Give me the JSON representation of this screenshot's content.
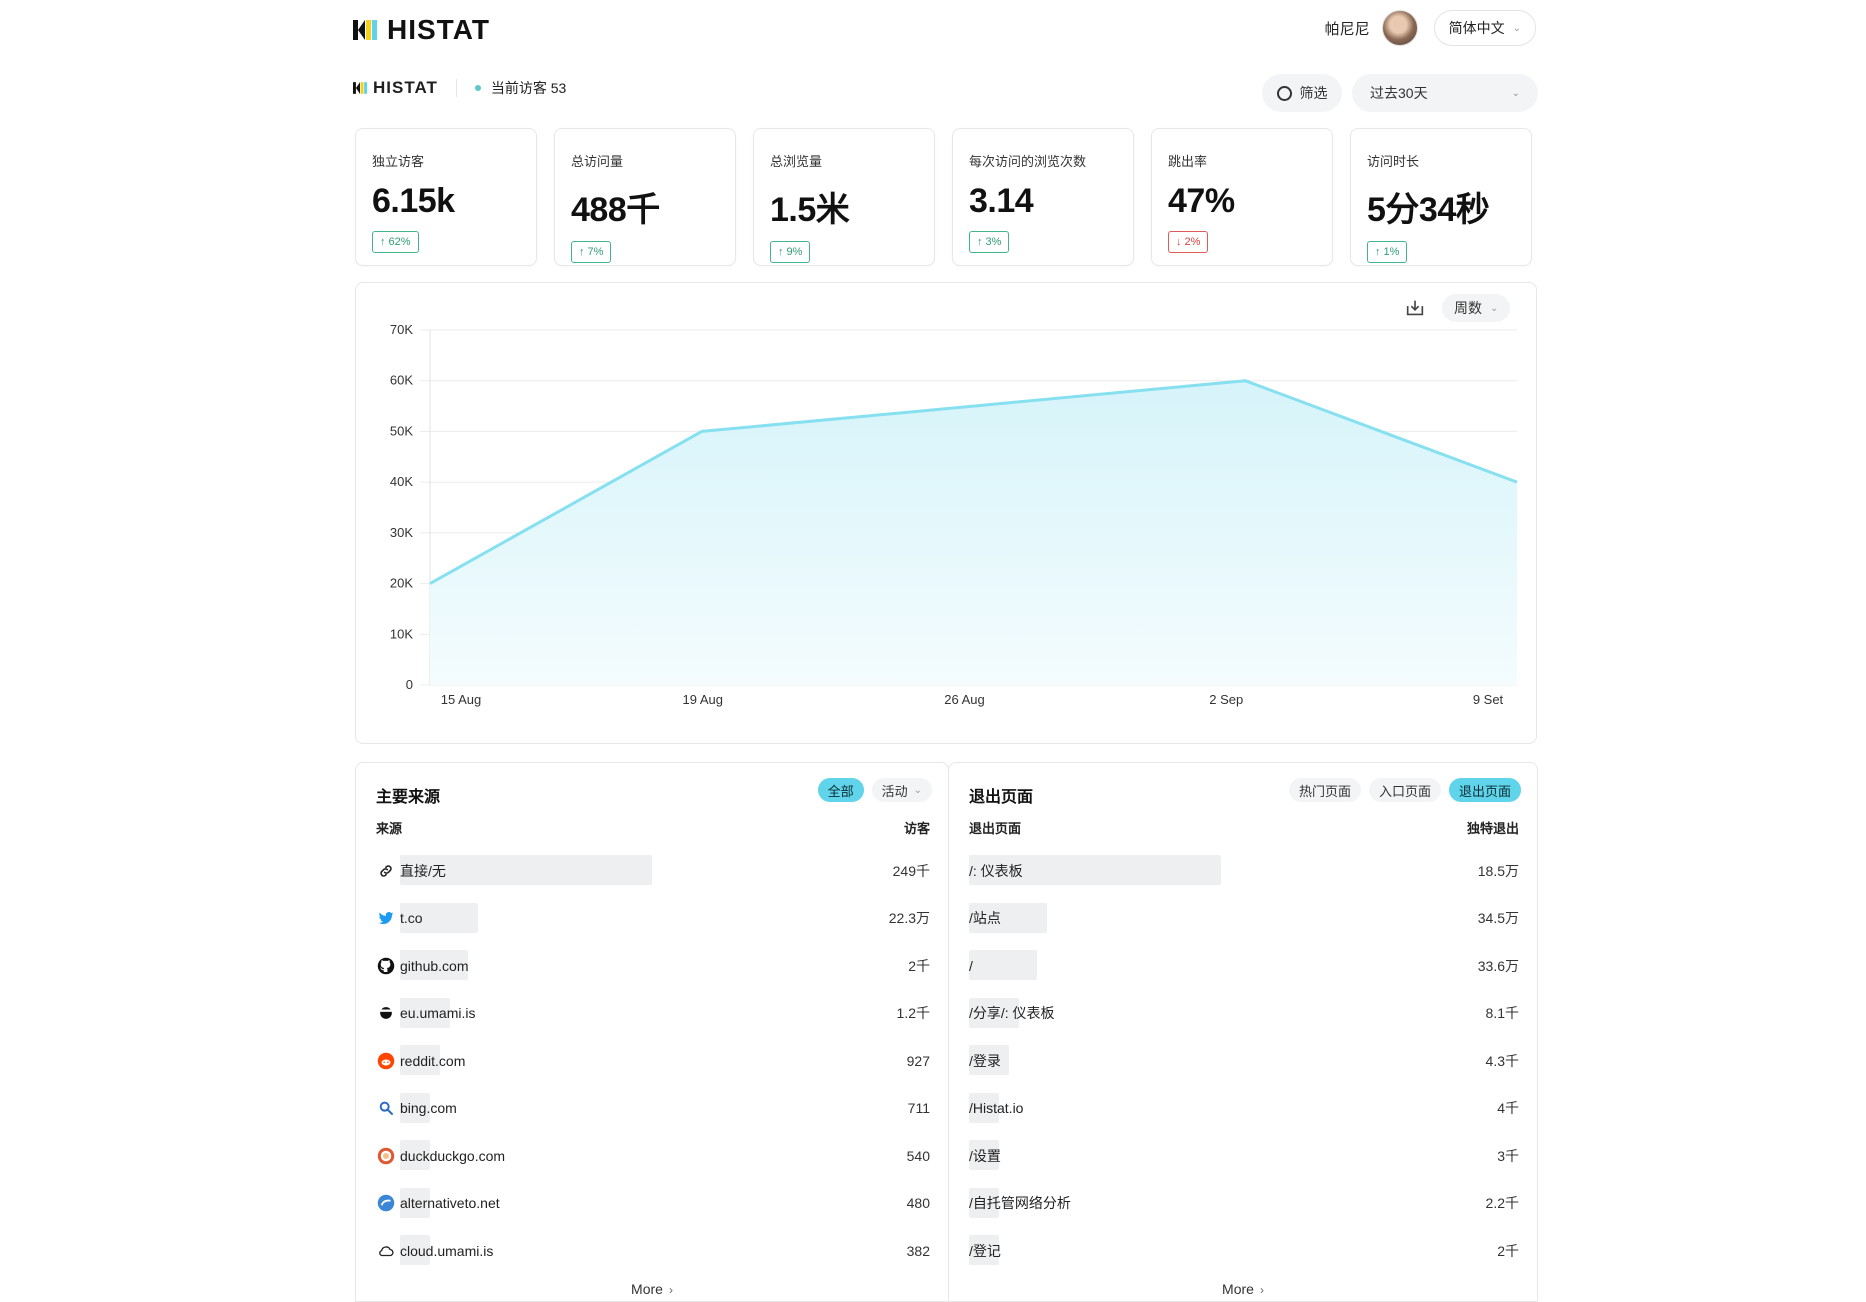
{
  "header": {
    "logo": "HISTAT",
    "user_name": "帕尼尼",
    "language": "简体中文"
  },
  "site": {
    "logo": "HISTAT",
    "live_label": "当前访客 53",
    "filter_label": "筛选",
    "range_label": "过去30天"
  },
  "metrics": [
    {
      "label": "独立访客",
      "value": "6.15k",
      "change": "62%",
      "direction": "up"
    },
    {
      "label": "总访问量",
      "value": "488千",
      "change": "7%",
      "direction": "up"
    },
    {
      "label": "总浏览量",
      "value": "1.5米",
      "change": "9%",
      "direction": "up"
    },
    {
      "label": "每次访问的浏览次数",
      "value": "3.14",
      "change": "3%",
      "direction": "up"
    },
    {
      "label": "跳出率",
      "value": "47%",
      "change": "2%",
      "direction": "down"
    },
    {
      "label": "访问时长",
      "value": "5分34秒",
      "change": "1%",
      "direction": "up"
    }
  ],
  "chart_controls": {
    "interval": "周数"
  },
  "chart_data": {
    "type": "area",
    "x": [
      "15 Aug",
      "19 Aug",
      "26 Aug",
      "2 Sep",
      "9 Set"
    ],
    "y_ticks": [
      "0",
      "10K",
      "20K",
      "30K",
      "40K",
      "50K",
      "60K",
      "70K"
    ],
    "ylim": [
      0,
      70000
    ],
    "series": [
      {
        "values": [
          20000,
          50000,
          55000,
          60000,
          40000
        ]
      }
    ],
    "grid": true,
    "colors": {
      "line": "#86e0f0",
      "fill_top": "#d6f4fa",
      "fill_bottom": "#f4fcfe"
    }
  },
  "sources": {
    "title": "主要来源",
    "tabs": [
      {
        "label": "全部",
        "active": true
      },
      {
        "label": "活动",
        "active": false,
        "dropdown": true
      }
    ],
    "col_label": "来源",
    "col_value": "访客",
    "rows": [
      {
        "icon": "link-icon",
        "label": "直接/无",
        "value": "249千",
        "share": 1.0
      },
      {
        "icon": "twitter-icon",
        "label": "t.co",
        "value": "22.3万",
        "share": 0.31
      },
      {
        "icon": "github-icon",
        "label": "github.com",
        "value": "2千",
        "share": 0.27
      },
      {
        "icon": "umami-icon",
        "label": "eu.umami.is",
        "value": "1.2千",
        "share": 0.2
      },
      {
        "icon": "reddit-icon",
        "label": "reddit.com",
        "value": "927",
        "share": 0.16
      },
      {
        "icon": "search-icon",
        "label": "bing.com",
        "value": "711",
        "share": 0.12
      },
      {
        "icon": "duckduckgo-icon",
        "label": "duckduckgo.com",
        "value": "540",
        "share": 0.12
      },
      {
        "icon": "alternativeto-icon",
        "label": "alternativeto.net",
        "value": "480",
        "share": 0.1
      },
      {
        "icon": "cloud-icon",
        "label": "cloud.umami.is",
        "value": "382",
        "share": 0.1
      }
    ],
    "more": "More"
  },
  "pages": {
    "title": "退出页面",
    "tabs": [
      {
        "label": "热门页面",
        "active": false
      },
      {
        "label": "入口页面",
        "active": false
      },
      {
        "label": "退出页面",
        "active": true
      }
    ],
    "col_label": "退出页面",
    "col_value": "独特退出",
    "rows": [
      {
        "label": "/: 仪表板",
        "value": "18.5万",
        "share": 1.0
      },
      {
        "label": "/站点",
        "value": "34.5万",
        "share": 0.31
      },
      {
        "label": "/",
        "value": "33.6万",
        "share": 0.27
      },
      {
        "label": "/分享/: 仪表板",
        "value": "8.1千",
        "share": 0.2
      },
      {
        "label": "/登录",
        "value": "4.3千",
        "share": 0.16
      },
      {
        "label": "/Histat.io",
        "value": "4千",
        "share": 0.12
      },
      {
        "label": "/设置",
        "value": "3千",
        "share": 0.12
      },
      {
        "label": "/自托管网络分析",
        "value": "2.2千",
        "share": 0.1
      },
      {
        "label": "/登记",
        "value": "2千",
        "share": 0.1
      }
    ],
    "more": "More"
  }
}
